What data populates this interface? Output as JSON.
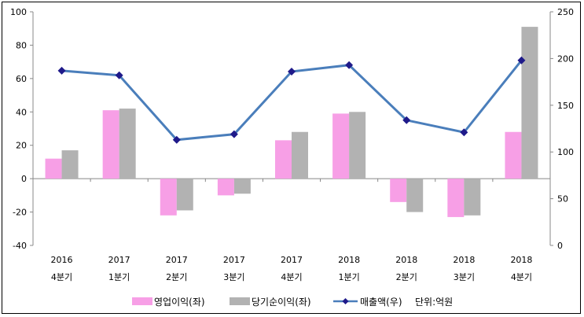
{
  "chart_data": {
    "type": "bar",
    "title": "",
    "categories": [
      {
        "year": "2016",
        "quarter": "4분기"
      },
      {
        "year": "2017",
        "quarter": "1분기"
      },
      {
        "year": "2017",
        "quarter": "2분기"
      },
      {
        "year": "2017",
        "quarter": "3분기"
      },
      {
        "year": "2017",
        "quarter": "4분기"
      },
      {
        "year": "2018",
        "quarter": "1분기"
      },
      {
        "year": "2018",
        "quarter": "2분기"
      },
      {
        "year": "2018",
        "quarter": "3분기"
      },
      {
        "year": "2018",
        "quarter": "4분기"
      }
    ],
    "series": [
      {
        "name": "영업이익(좌)",
        "type": "bar",
        "axis": "left",
        "color": "#f79fe6",
        "values": [
          12,
          41,
          -22,
          -10,
          23,
          39,
          -14,
          -23,
          28
        ]
      },
      {
        "name": "당기순이익(좌)",
        "type": "bar",
        "axis": "left",
        "color": "#b2b2b2",
        "values": [
          17,
          42,
          -19,
          -9,
          28,
          40,
          -20,
          -22,
          91
        ]
      },
      {
        "name": "매출액(우)",
        "type": "line",
        "axis": "right",
        "color": "#4a7ebb",
        "marker_color": "#1f1a8a",
        "values": [
          187,
          182,
          113,
          119,
          186,
          193,
          134,
          121,
          198
        ]
      }
    ],
    "left_axis": {
      "min": -40,
      "max": 100,
      "ticks": [
        "-40",
        "-20",
        "0",
        "20",
        "40",
        "60",
        "80",
        "100"
      ]
    },
    "right_axis": {
      "min": 0,
      "max": 250,
      "ticks": [
        "0",
        "50",
        "100",
        "150",
        "200",
        "250"
      ]
    },
    "unit_note": "단위:억원"
  }
}
